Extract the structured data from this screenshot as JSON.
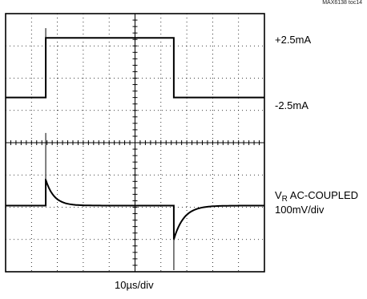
{
  "figure_code": "MAX6138 toc14",
  "chart_data": {
    "type": "line",
    "title": "",
    "xlabel": "10µs/div",
    "ylabel": "",
    "grid": true,
    "x_divisions": 10,
    "y_divisions": 8,
    "traces": [
      {
        "name": "+2.5mA",
        "label_low": "-2.5mA",
        "kind": "square",
        "x_div": [
          0,
          1.55,
          1.55,
          6.5,
          6.5,
          10
        ],
        "y_div": [
          5.4,
          5.4,
          7.25,
          7.25,
          5.4,
          5.4
        ],
        "spike_top_div": 7.55
      },
      {
        "name": "VR AC-COUPLED",
        "label_main": "V",
        "label_sub": "R",
        "label_rest": " AC-COUPLED",
        "scale": "100mV/div",
        "kind": "step-response",
        "baseline_div": 2.05,
        "rise_edge_div": 1.55,
        "rise_peak_div": 2.85,
        "spike_top_div": 4.3,
        "fall_edge_div": 6.5,
        "fall_low_div": 1.0,
        "spike_bottom_div": 0.05,
        "tau_div": 0.32
      }
    ]
  }
}
